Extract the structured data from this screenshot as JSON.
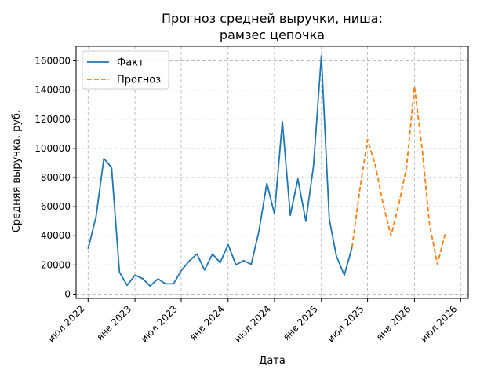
{
  "chart_data": {
    "type": "line",
    "title_line1": "Прогноз средней выручки, ниша:",
    "title_line2": "рамзес цепочка",
    "xlabel": "Дата",
    "ylabel": "Средняя выручка, руб.",
    "ylim": [
      -3000,
      170000
    ],
    "yticks": [
      0,
      20000,
      40000,
      60000,
      80000,
      100000,
      120000,
      140000,
      160000
    ],
    "ytick_labels": [
      "0",
      "20000",
      "40000",
      "60000",
      "80000",
      "100000",
      "120000",
      "140000",
      "160000"
    ],
    "xlim": [
      "2022-05-15",
      "2026-07-31"
    ],
    "xticks": [
      "2022-07-01",
      "2023-01-01",
      "2023-07-01",
      "2024-01-01",
      "2024-07-01",
      "2025-01-01",
      "2025-07-01",
      "2026-01-01",
      "2026-07-01"
    ],
    "xtick_labels": [
      "июл 2022",
      "янв 2023",
      "июл 2023",
      "янв 2024",
      "июл 2024",
      "янв 2025",
      "июл 2025",
      "янв 2026",
      "июл 2026"
    ],
    "grid": true,
    "legend_position": "top-left",
    "series": [
      {
        "name": "Факт",
        "color": "#1f77b4",
        "style": "solid",
        "points": [
          [
            "2022-07-01",
            31000
          ],
          [
            "2022-08-01",
            53000
          ],
          [
            "2022-09-01",
            93000
          ],
          [
            "2022-10-01",
            87000
          ],
          [
            "2022-11-01",
            15000
          ],
          [
            "2022-12-01",
            6000
          ],
          [
            "2023-01-01",
            13000
          ],
          [
            "2023-02-01",
            10500
          ],
          [
            "2023-03-01",
            5500
          ],
          [
            "2023-04-01",
            10500
          ],
          [
            "2023-05-01",
            7000
          ],
          [
            "2023-06-01",
            7000
          ],
          [
            "2023-07-01",
            16000
          ],
          [
            "2023-08-01",
            22500
          ],
          [
            "2023-09-01",
            27500
          ],
          [
            "2023-10-01",
            16500
          ],
          [
            "2023-11-01",
            27500
          ],
          [
            "2023-12-01",
            21500
          ],
          [
            "2024-01-01",
            34000
          ],
          [
            "2024-02-01",
            20000
          ],
          [
            "2024-03-01",
            23000
          ],
          [
            "2024-04-01",
            20500
          ],
          [
            "2024-05-01",
            43000
          ],
          [
            "2024-06-01",
            76000
          ],
          [
            "2024-07-01",
            55000
          ],
          [
            "2024-08-01",
            118500
          ],
          [
            "2024-09-01",
            54000
          ],
          [
            "2024-10-01",
            79000
          ],
          [
            "2024-11-01",
            50000
          ],
          [
            "2024-12-01",
            88000
          ],
          [
            "2025-01-01",
            163500
          ],
          [
            "2025-02-01",
            51500
          ],
          [
            "2025-03-01",
            26000
          ],
          [
            "2025-04-01",
            13000
          ],
          [
            "2025-05-01",
            32000
          ]
        ]
      },
      {
        "name": "Прогноз",
        "color": "#ff7f0e",
        "style": "dashed",
        "points": [
          [
            "2025-05-01",
            32000
          ],
          [
            "2025-06-01",
            72000
          ],
          [
            "2025-07-01",
            106000
          ],
          [
            "2025-08-01",
            88000
          ],
          [
            "2025-09-01",
            61000
          ],
          [
            "2025-10-01",
            40000
          ],
          [
            "2025-11-01",
            62000
          ],
          [
            "2025-12-01",
            87000
          ],
          [
            "2026-01-01",
            142500
          ],
          [
            "2026-02-01",
            98000
          ],
          [
            "2026-03-01",
            48000
          ],
          [
            "2026-04-01",
            20500
          ],
          [
            "2026-05-01",
            41000
          ]
        ]
      }
    ]
  }
}
